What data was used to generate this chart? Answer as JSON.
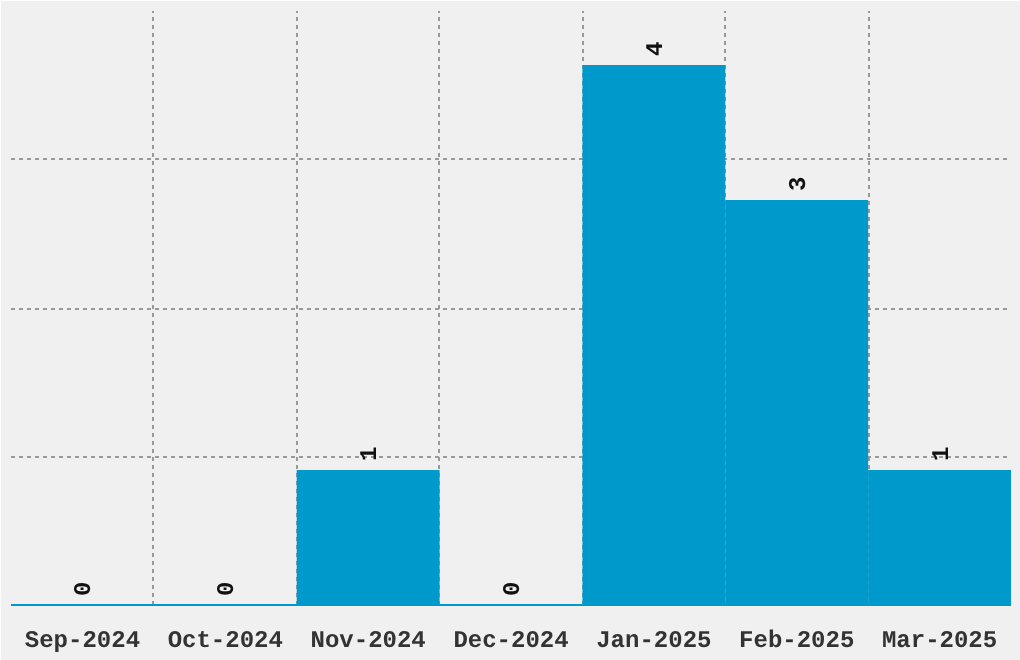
{
  "chart_data": {
    "type": "bar",
    "categories": [
      "Sep-2024",
      "Oct-2024",
      "Nov-2024",
      "Dec-2024",
      "Jan-2025",
      "Feb-2025",
      "Mar-2025"
    ],
    "values": [
      0,
      0,
      1,
      0,
      4,
      3,
      1
    ],
    "color": "#0099cc",
    "ylim": [
      0,
      4.4
    ],
    "yticks": [
      {
        "value": 1.1,
        "label": null
      },
      {
        "value": 2.2,
        "label": null
      },
      {
        "value": 3.3,
        "label": null
      }
    ],
    "tick_labels": "x",
    "grid": true,
    "data_labels": true
  }
}
